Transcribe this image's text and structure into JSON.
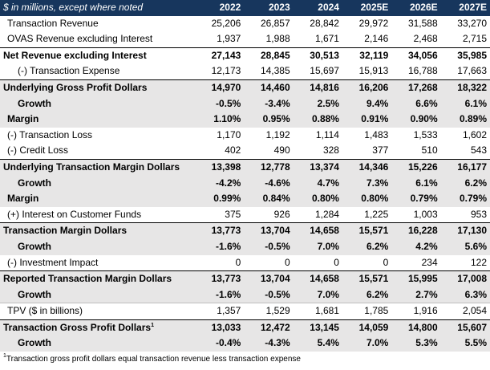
{
  "header": {
    "label": "$ in millions, except where noted",
    "years": [
      "2022",
      "2023",
      "2024",
      "2025E",
      "2026E",
      "2027E"
    ]
  },
  "rows": [
    {
      "label": "Transaction Revenue",
      "values": [
        "25,206",
        "26,857",
        "28,842",
        "29,972",
        "31,588",
        "33,270"
      ]
    },
    {
      "label": "OVAS Revenue excluding Interest",
      "values": [
        "1,937",
        "1,988",
        "1,671",
        "2,146",
        "2,468",
        "2,715"
      ]
    },
    {
      "label": "Net Revenue excluding Interest",
      "values": [
        "27,143",
        "28,845",
        "30,513",
        "32,119",
        "34,056",
        "35,985"
      ]
    },
    {
      "label": "(-) Transaction Expense",
      "values": [
        "12,173",
        "14,385",
        "15,697",
        "15,913",
        "16,788",
        "17,663"
      ]
    },
    {
      "label": "Underlying Gross Profit Dollars",
      "values": [
        "14,970",
        "14,460",
        "14,816",
        "16,206",
        "17,268",
        "18,322"
      ]
    },
    {
      "label": "Growth",
      "values": [
        "-0.5%",
        "-3.4%",
        "2.5%",
        "9.4%",
        "6.6%",
        "6.1%"
      ]
    },
    {
      "label": "Margin",
      "values": [
        "1.10%",
        "0.95%",
        "0.88%",
        "0.91%",
        "0.90%",
        "0.89%"
      ]
    },
    {
      "label": "(-) Transaction Loss",
      "values": [
        "1,170",
        "1,192",
        "1,114",
        "1,483",
        "1,533",
        "1,602"
      ]
    },
    {
      "label": "(-) Credit Loss",
      "values": [
        "402",
        "490",
        "328",
        "377",
        "510",
        "543"
      ]
    },
    {
      "label": "Underlying Transaction Margin Dollars",
      "values": [
        "13,398",
        "12,778",
        "13,374",
        "14,346",
        "15,226",
        "16,177"
      ]
    },
    {
      "label": "Growth",
      "values": [
        "-4.2%",
        "-4.6%",
        "4.7%",
        "7.3%",
        "6.1%",
        "6.2%"
      ]
    },
    {
      "label": "Margin",
      "values": [
        "0.99%",
        "0.84%",
        "0.80%",
        "0.80%",
        "0.79%",
        "0.79%"
      ]
    },
    {
      "label": "(+) Interest on Customer Funds",
      "values": [
        "375",
        "926",
        "1,284",
        "1,225",
        "1,003",
        "953"
      ]
    },
    {
      "label": "Transaction Margin Dollars",
      "values": [
        "13,773",
        "13,704",
        "14,658",
        "15,571",
        "16,228",
        "17,130"
      ]
    },
    {
      "label": "Growth",
      "values": [
        "-1.6%",
        "-0.5%",
        "7.0%",
        "6.2%",
        "4.2%",
        "5.6%"
      ]
    },
    {
      "label": "(-) Investment Impact",
      "values": [
        "0",
        "0",
        "0",
        "0",
        "234",
        "122"
      ]
    },
    {
      "label": "Reported Transaction Margin Dollars",
      "values": [
        "13,773",
        "13,704",
        "14,658",
        "15,571",
        "15,995",
        "17,008"
      ]
    },
    {
      "label": "Growth",
      "values": [
        "-1.6%",
        "-0.5%",
        "7.0%",
        "6.2%",
        "2.7%",
        "6.3%"
      ]
    },
    {
      "label": "TPV ($ in billions)",
      "values": [
        "1,357",
        "1,529",
        "1,681",
        "1,785",
        "1,916",
        "2,054"
      ]
    },
    {
      "label": "Transaction Gross Profit Dollars",
      "sup": "1",
      "values": [
        "13,033",
        "12,472",
        "13,145",
        "14,059",
        "14,800",
        "15,607"
      ]
    },
    {
      "label": "Growth",
      "values": [
        "-0.4%",
        "-4.3%",
        "5.4%",
        "7.0%",
        "5.3%",
        "5.5%"
      ]
    }
  ],
  "footnote": {
    "marker": "1",
    "text": "Transaction gross profit dollars equal transaction revenue less transaction expense"
  },
  "colors": {
    "header_bg": "#17365d",
    "header_text": "#ffffff",
    "shade": "#e7e6e6"
  }
}
